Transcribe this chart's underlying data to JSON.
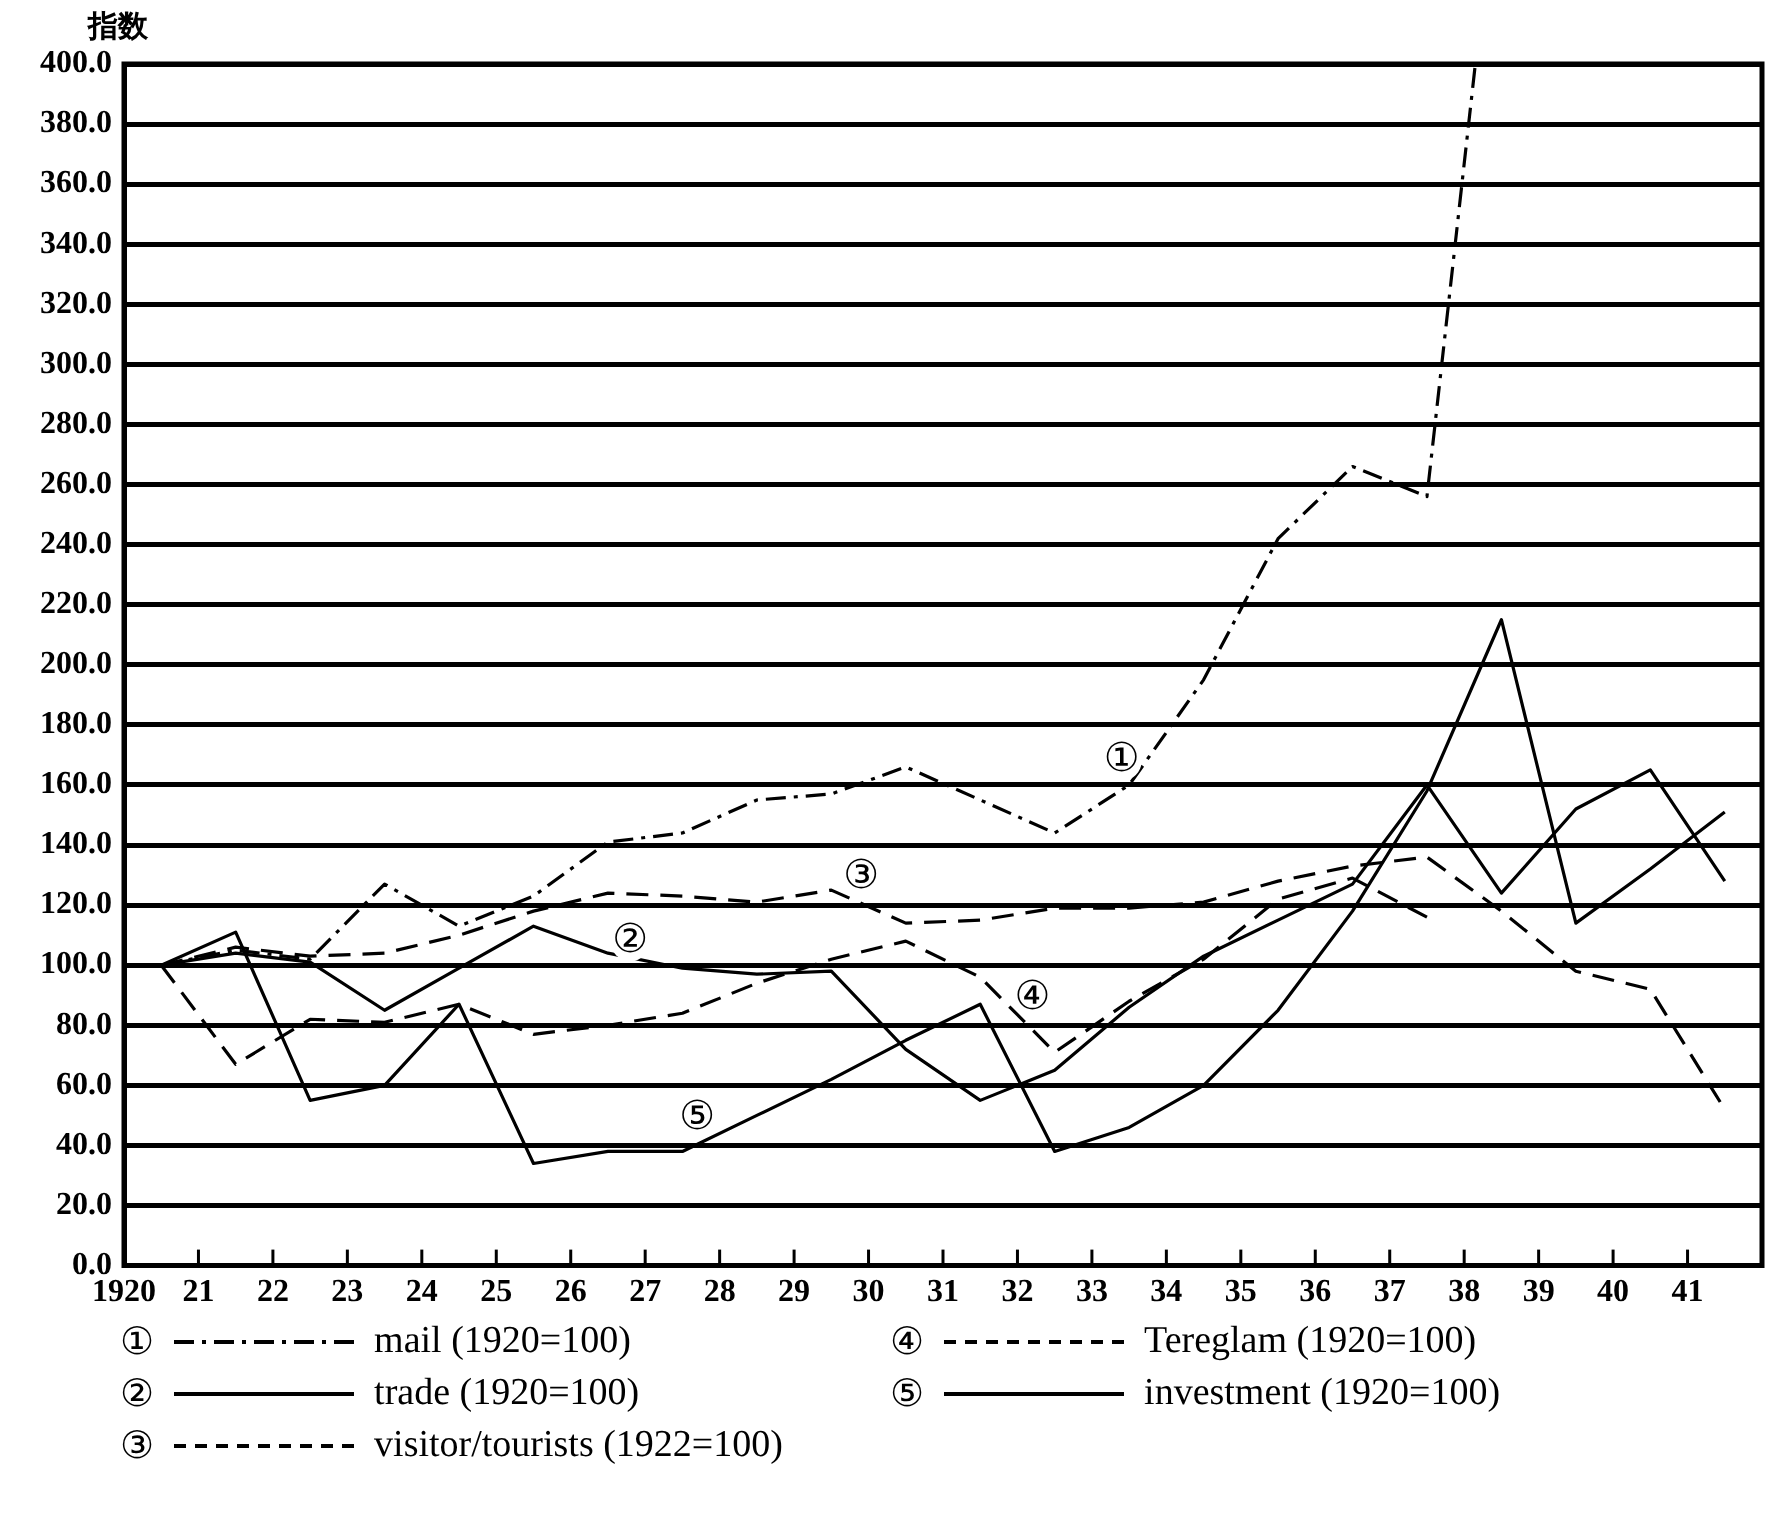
{
  "chart_data": {
    "type": "line",
    "ylabel": "指数",
    "x": [
      1920.5,
      1921.5,
      1922.5,
      1923.5,
      1924.5,
      1925.5,
      1926.5,
      1927.5,
      1928.5,
      1929.5,
      1930.5,
      1931.5,
      1932.5,
      1933.5,
      1934.5,
      1935.5,
      1936.5,
      1937.5,
      1938.5,
      1939.5,
      1940.5,
      1941.5
    ],
    "series": [
      {
        "name": "mail (1920=100)",
        "color": "#000000",
        "line_style": "dashdot",
        "x": [
          1920.5,
          1921.5,
          1922.5,
          1923.5,
          1924.5,
          1925.5,
          1926.5,
          1927.5,
          1928.5,
          1929.5,
          1930.5,
          1931.5,
          1932.5,
          1933.5,
          1934.5,
          1935.5,
          1936.5,
          1937.5,
          1938.15
        ],
        "values": [
          100,
          105,
          102,
          127,
          113,
          123,
          141,
          144,
          155,
          157,
          166,
          155,
          144,
          160,
          195,
          242,
          266,
          256,
          400
        ]
      },
      {
        "name": "trade (1920=100)",
        "color": "#000000",
        "line_style": "solid",
        "values": [
          100,
          104,
          101,
          85,
          99,
          113,
          104,
          99,
          97,
          98,
          72,
          55,
          65,
          86,
          103,
          115,
          127,
          160,
          124,
          152,
          165,
          128
        ]
      },
      {
        "name": "visitor/tourists (1922=100)",
        "color": "#000000",
        "line_style": "dashed",
        "values": [
          100,
          106,
          103,
          104,
          110,
          118,
          124,
          123,
          121,
          125,
          114,
          115,
          119,
          119,
          121,
          128,
          133,
          136,
          118,
          98,
          92,
          52
        ]
      },
      {
        "name": "Tereglam (1920=100)",
        "color": "#000000",
        "line_style": "dashed",
        "values": [
          100,
          67,
          82,
          81,
          87,
          77,
          80,
          84,
          94,
          102,
          108,
          96,
          71,
          88,
          102,
          122,
          129,
          116,
          null,
          null,
          null,
          null
        ]
      },
      {
        "name": "investment (1920=100)",
        "color": "#000000",
        "line_style": "solid",
        "values": [
          100,
          111,
          55,
          60,
          87,
          34,
          38,
          38,
          50,
          62,
          75,
          87,
          38,
          46,
          60,
          85,
          118,
          158,
          215,
          114,
          132,
          151
        ]
      }
    ],
    "xlim": [
      1920,
      1942
    ],
    "xticks": [
      {
        "value": 1920,
        "label": "1920"
      },
      {
        "value": 1921,
        "label": "21"
      },
      {
        "value": 1922,
        "label": "22"
      },
      {
        "value": 1923,
        "label": "23"
      },
      {
        "value": 1924,
        "label": "24"
      },
      {
        "value": 1925,
        "label": "25"
      },
      {
        "value": 1926,
        "label": "26"
      },
      {
        "value": 1927,
        "label": "27"
      },
      {
        "value": 1928,
        "label": "28"
      },
      {
        "value": 1929,
        "label": "29"
      },
      {
        "value": 1930,
        "label": "30"
      },
      {
        "value": 1931,
        "label": "31"
      },
      {
        "value": 1932,
        "label": "32"
      },
      {
        "value": 1933,
        "label": "33"
      },
      {
        "value": 1934,
        "label": "34"
      },
      {
        "value": 1935,
        "label": "35"
      },
      {
        "value": 1936,
        "label": "36"
      },
      {
        "value": 1937,
        "label": "37"
      },
      {
        "value": 1938,
        "label": "38"
      },
      {
        "value": 1939,
        "label": "39"
      },
      {
        "value": 1940,
        "label": "40"
      },
      {
        "value": 1941,
        "label": "41"
      },
      {
        "value": 1942,
        "label": null
      }
    ],
    "ylim": [
      0,
      400
    ],
    "yticks": [
      {
        "value": 0,
        "label": "0.0"
      },
      {
        "value": 20,
        "label": "20.0"
      },
      {
        "value": 40,
        "label": "40.0"
      },
      {
        "value": 60,
        "label": "60.0"
      },
      {
        "value": 80,
        "label": "80.0"
      },
      {
        "value": 100,
        "label": "100.0"
      },
      {
        "value": 120,
        "label": "120.0"
      },
      {
        "value": 140,
        "label": "140.0"
      },
      {
        "value": 160,
        "label": "160.0"
      },
      {
        "value": 180,
        "label": "180.0"
      },
      {
        "value": 200,
        "label": "200.0"
      },
      {
        "value": 220,
        "label": "220.0"
      },
      {
        "value": 240,
        "label": "240.0"
      },
      {
        "value": 260,
        "label": "260.0"
      },
      {
        "value": 280,
        "label": "280.0"
      },
      {
        "value": 300,
        "label": "300.0"
      },
      {
        "value": 320,
        "label": "320.0"
      },
      {
        "value": 340,
        "label": "340.0"
      },
      {
        "value": 360,
        "label": "360.0"
      },
      {
        "value": 380,
        "label": "380.0"
      },
      {
        "value": 400,
        "label": "400.0"
      }
    ],
    "grid": "y",
    "legend": "bottom",
    "annotations": [
      {
        "text": "①",
        "x": 1933.4,
        "y": 168
      },
      {
        "text": "②",
        "x": 1926.8,
        "y": 108
      },
      {
        "text": "③",
        "x": 1929.9,
        "y": 129
      },
      {
        "text": "④",
        "x": 1932.2,
        "y": 89
      },
      {
        "text": "⑤",
        "x": 1927.7,
        "y": 49
      }
    ]
  }
}
